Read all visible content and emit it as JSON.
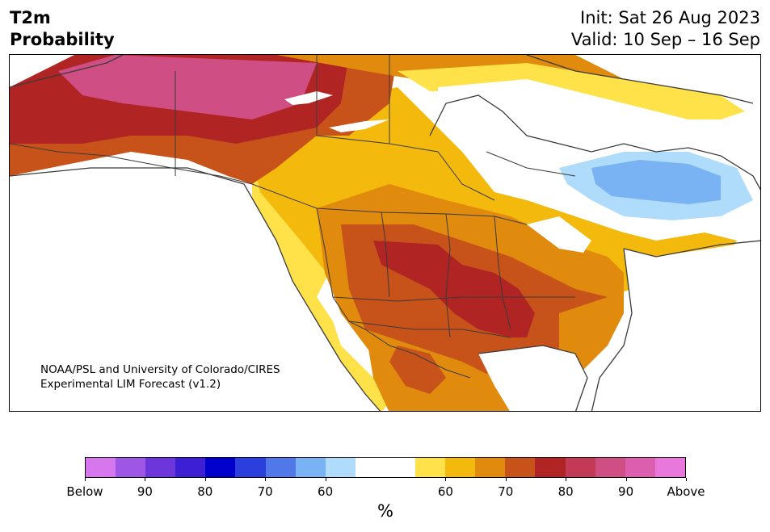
{
  "header": {
    "title_line1": "T2m",
    "title_line2": "Probability",
    "init": "Init: Sat 26 Aug 2023",
    "valid": "Valid: 10 Sep – 16 Sep"
  },
  "map": {
    "credit_line1": "NOAA/PSL and University of Colorado/CIRES",
    "credit_line2": "Experimental LIM Forecast (v1.2)"
  },
  "colorbar": {
    "colors": [
      "#d677ee",
      "#9d57e4",
      "#6c36da",
      "#3d1fd4",
      "#0000cc",
      "#2a3fdc",
      "#5078e8",
      "#7ab3f3",
      "#aedcfa",
      "#ffffff",
      "#ffffff",
      "#ffe14a",
      "#f4b90d",
      "#e08a0e",
      "#c7531a",
      "#b02424",
      "#c23a55",
      "#cf4e83",
      "#db5eaf",
      "#e878dc"
    ],
    "ticks": [
      "Below",
      "90",
      "80",
      "70",
      "60",
      "60",
      "70",
      "80",
      "90",
      "Above"
    ],
    "unit": "%"
  }
}
